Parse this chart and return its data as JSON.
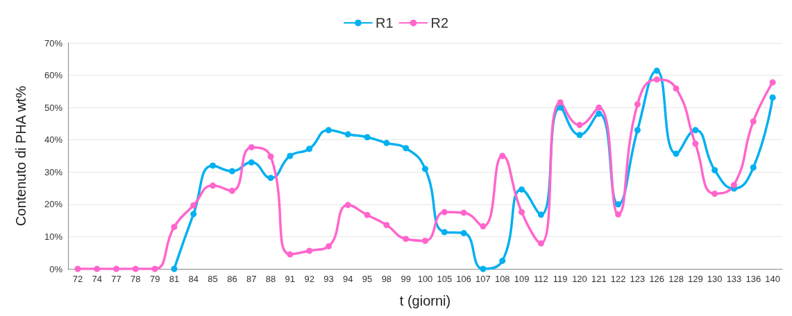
{
  "chart_data": {
    "type": "line",
    "xlabel": "t (giorni)",
    "ylabel": "Contenuto di PHA wt%",
    "categories": [
      "72",
      "74",
      "77",
      "78",
      "79",
      "81",
      "84",
      "85",
      "86",
      "87",
      "88",
      "91",
      "92",
      "93",
      "94",
      "95",
      "98",
      "99",
      "100",
      "105",
      "106",
      "107",
      "108",
      "109",
      "112",
      "119",
      "120",
      "121",
      "122",
      "123",
      "126",
      "128",
      "129",
      "130",
      "133",
      "136",
      "140"
    ],
    "series": [
      {
        "name": "R1",
        "color": "#00b0f0",
        "values": [
          null,
          null,
          null,
          null,
          null,
          0,
          17,
          32,
          30.3,
          33,
          28.2,
          35,
          37.2,
          43,
          41.7,
          40.8,
          39,
          37.4,
          31,
          11.4,
          11.1,
          0,
          2.5,
          24.6,
          16.8,
          50,
          41.5,
          48.1,
          20,
          43,
          61.4,
          35.7,
          43,
          30.6,
          24.9,
          31.4,
          53.1
        ]
      },
      {
        "name": "R2",
        "color": "#ff66cc",
        "values": [
          0,
          0,
          0,
          0,
          0,
          13,
          19.7,
          25.8,
          24.2,
          37.7,
          34.8,
          4.5,
          5.6,
          7,
          19.8,
          16.7,
          13.6,
          9.3,
          8.7,
          17.6,
          17.4,
          13.2,
          35,
          17.6,
          7.9,
          51.6,
          44.6,
          50,
          16.9,
          51,
          58.7,
          55.9,
          38.8,
          23.3,
          26,
          45.7,
          57.8
        ]
      }
    ],
    "ylim": [
      0,
      70
    ],
    "yticks": [
      {
        "value": 0,
        "label": "0%"
      },
      {
        "value": 10,
        "label": "10%"
      },
      {
        "value": 20,
        "label": "20%"
      },
      {
        "value": 30,
        "label": "30%"
      },
      {
        "value": 40,
        "label": "40%"
      },
      {
        "value": 50,
        "label": "50%"
      },
      {
        "value": 60,
        "label": "60%"
      },
      {
        "value": 70,
        "label": "70%"
      }
    ],
    "grid": "y",
    "legend": "top",
    "marker": "circle",
    "line_style": "solid"
  }
}
